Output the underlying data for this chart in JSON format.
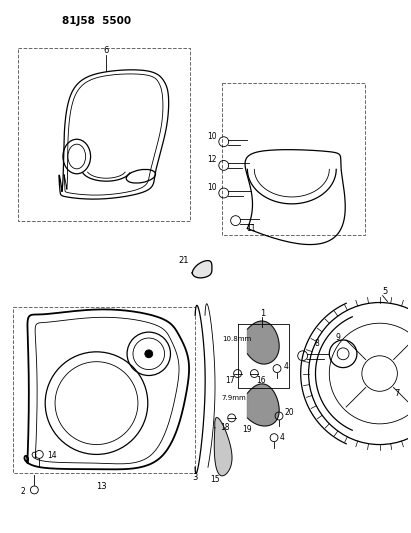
{
  "title": "81J58 5500",
  "bg": "#ffffff",
  "lc": "#000000",
  "fig_w": 4.11,
  "fig_h": 5.33,
  "dpi": 100
}
